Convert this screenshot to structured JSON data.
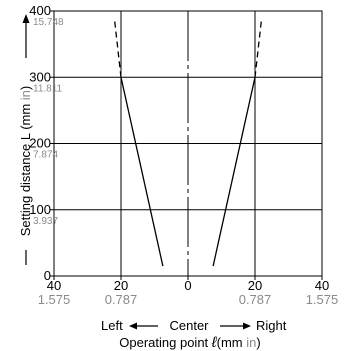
{
  "chart_data": {
    "type": "line",
    "colors": {
      "mm": "#000000",
      "inch": "#8a8a8a"
    },
    "grid": true,
    "y_axis": {
      "range": [
        0,
        400
      ],
      "ticks": [
        {
          "mm": "0",
          "inch": ""
        },
        {
          "mm": "100",
          "inch": "3.937"
        },
        {
          "mm": "200",
          "inch": "7.874"
        },
        {
          "mm": "300",
          "inch": "11.811"
        },
        {
          "mm": "400",
          "inch": "15.748"
        }
      ],
      "title": {
        "prefix": "Setting distance L (mm ",
        "unit_in": "in",
        "suffix": ")"
      }
    },
    "x_axis": {
      "range": [
        -40,
        40
      ],
      "ticks": [
        {
          "value": -40,
          "mm": "40",
          "inch": "1.575"
        },
        {
          "value": -20,
          "mm": "20",
          "inch": "0.787"
        },
        {
          "value": 0,
          "mm": "0",
          "inch": ""
        },
        {
          "value": 20,
          "mm": "20",
          "inch": "0.787"
        },
        {
          "value": 40,
          "mm": "40",
          "inch": "1.575"
        }
      ],
      "direction": {
        "left": "Left",
        "center": "Center",
        "right": "Right"
      },
      "title": {
        "prefix": "Operating point ",
        "symbol": "ℓ",
        "mid": "(mm ",
        "unit_in": "in",
        "suffix": ")"
      }
    },
    "series": [
      {
        "solid": [
          {
            "x": -7.5,
            "y": 15
          },
          {
            "x": -20,
            "y": 300
          }
        ],
        "dashed": [
          {
            "x": -20,
            "y": 300
          },
          {
            "x": -22,
            "y": 390
          }
        ]
      },
      {
        "solid": [
          {
            "x": 7.5,
            "y": 15
          },
          {
            "x": 20,
            "y": 300
          }
        ],
        "dashed": [
          {
            "x": 20,
            "y": 300
          },
          {
            "x": 22,
            "y": 390
          }
        ]
      }
    ]
  }
}
